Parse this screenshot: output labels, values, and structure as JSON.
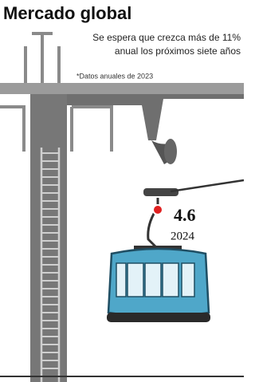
{
  "header": {
    "title": "Mercado global",
    "subtitle": [
      "Se espera que crezca más de 11%",
      "anual los próximos siete años"
    ],
    "note": "*Datos anuales de 2023"
  },
  "highlight": {
    "value": 4.6,
    "year": "2024"
  }
}
